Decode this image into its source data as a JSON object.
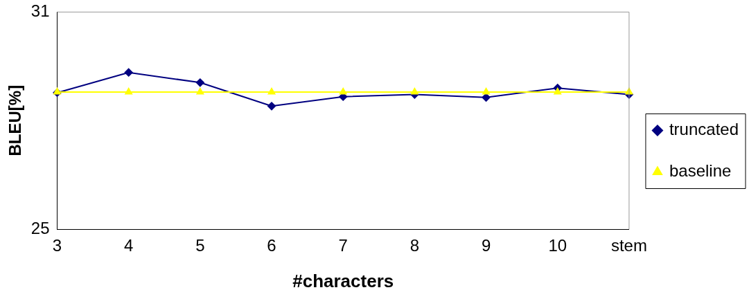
{
  "chart_data": {
    "type": "line",
    "xlabel": "#characters",
    "ylabel": "BLEU[%]",
    "categories": [
      "3",
      "4",
      "5",
      "6",
      "7",
      "8",
      "9",
      "10",
      "stem"
    ],
    "ylim": [
      25,
      31
    ],
    "yticks": [
      25,
      31
    ],
    "grid": false,
    "legend": "right",
    "series": [
      {
        "name": "truncated",
        "color": "#000080",
        "marker": "diamond",
        "values": [
          28.77,
          29.33,
          29.05,
          28.4,
          28.66,
          28.72,
          28.64,
          28.9,
          28.72
        ]
      },
      {
        "name": "baseline",
        "color": "#ffff00",
        "marker": "triangle",
        "values": [
          28.79,
          28.79,
          28.79,
          28.79,
          28.79,
          28.79,
          28.79,
          28.79,
          28.79
        ]
      }
    ]
  }
}
